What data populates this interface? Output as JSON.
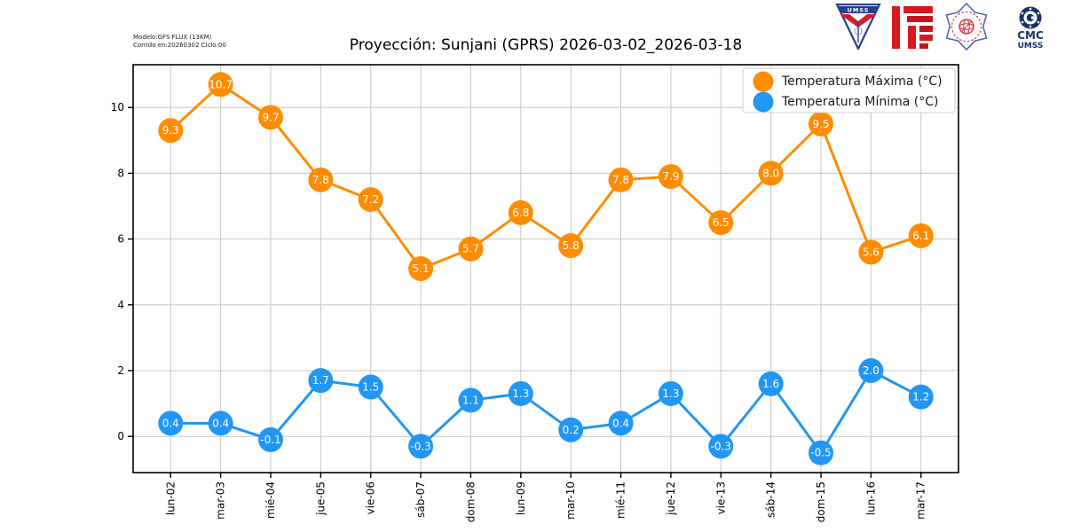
{
  "header": {
    "model_line1": "Modelo:GFS FLUX (13KM)",
    "model_line2": "Corrido en:20260302 Ciclo:00",
    "title": "Proyección: Sunjani (GPRS) 2026-03-02_2026-03-18"
  },
  "logos": {
    "pennant_text": "UMSS",
    "cmc_line1": "CMC",
    "cmc_line2": "UMSS"
  },
  "colors": {
    "grid": "#c6c6c6",
    "axis": "#000000",
    "max_series": "#ff8c00",
    "min_series": "#2196f3",
    "legend_border": "#cfcfcf"
  },
  "chart_data": {
    "type": "line",
    "title": "Proyección: Sunjani (GPRS) 2026-03-02_2026-03-18",
    "categories": [
      "lun-02",
      "mar-03",
      "mié-04",
      "jue-05",
      "vie-06",
      "sáb-07",
      "dom-08",
      "lun-09",
      "mar-10",
      "mié-11",
      "jue-12",
      "vie-13",
      "sáb-14",
      "dom-15",
      "lun-16",
      "mar-17"
    ],
    "series": [
      {
        "name": "Temperatura Máxima  (°C)",
        "color": "#ff8c00",
        "values": [
          9.3,
          10.7,
          9.7,
          7.8,
          7.2,
          5.1,
          5.7,
          6.8,
          5.8,
          7.8,
          7.9,
          6.5,
          8.0,
          9.5,
          5.6,
          6.1
        ]
      },
      {
        "name": "Temperatura Mínima  (°C)",
        "color": "#2196f3",
        "values": [
          0.4,
          0.4,
          -0.1,
          1.7,
          1.5,
          -0.3,
          1.1,
          1.3,
          0.2,
          0.4,
          1.3,
          -0.3,
          1.6,
          -0.5,
          2.0,
          1.2
        ]
      }
    ],
    "yticks": [
      0,
      2,
      4,
      6,
      8,
      10
    ],
    "ylim": [
      -1.1,
      11.3
    ],
    "xlabel": "",
    "ylabel": "",
    "grid": true,
    "legend_position": "upper-right",
    "point_labels": true
  }
}
